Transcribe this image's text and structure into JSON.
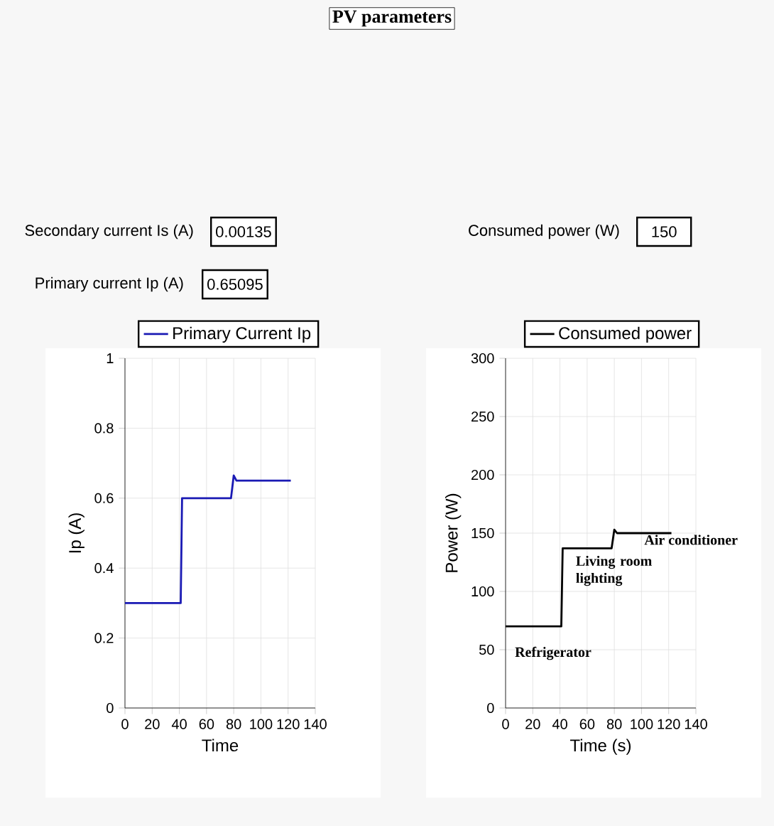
{
  "chart_data": [
    {
      "type": "other",
      "title": "PV parameters",
      "annotations": [
        "Secondary current Is (A)",
        "0.00135",
        "Primary current Ip (A)",
        "0.65095",
        "Consumed power (W)",
        "150"
      ]
    },
    {
      "type": "line",
      "xlabel": "Time",
      "ylabel": "Ip (A)",
      "x": [
        0,
        41,
        42,
        78,
        80,
        82,
        122
      ],
      "xlim": [
        0,
        140
      ],
      "ylim": [
        0,
        1
      ],
      "xticks": [
        0,
        20,
        40,
        60,
        80,
        100,
        120,
        140
      ],
      "yticks": [
        0,
        0.2,
        0.4,
        0.6,
        0.8,
        1
      ],
      "grid": true,
      "legend": "top right",
      "series": [
        {
          "name": "Primary Current Ip",
          "color": "#1a1ab4",
          "values": [
            0.3,
            0.3,
            0.6,
            0.6,
            0.665,
            0.65,
            0.65
          ]
        }
      ]
    },
    {
      "type": "line",
      "xlabel": "Time (s)",
      "ylabel": "Power (W)",
      "x": [
        0,
        41,
        42,
        78,
        80,
        82,
        122
      ],
      "xlim": [
        0,
        140
      ],
      "ylim": [
        0,
        300
      ],
      "xticks": [
        0,
        20,
        40,
        60,
        80,
        100,
        120,
        140
      ],
      "yticks": [
        0,
        50,
        100,
        150,
        200,
        250,
        300
      ],
      "grid": true,
      "legend": "top right",
      "series": [
        {
          "name": "Consumed power",
          "color": "#000000",
          "values": [
            70,
            70,
            137,
            137,
            153,
            150,
            150
          ]
        }
      ],
      "annotations": [
        "Refrigerator",
        "Living room lighting",
        "Air conditioner"
      ]
    }
  ]
}
